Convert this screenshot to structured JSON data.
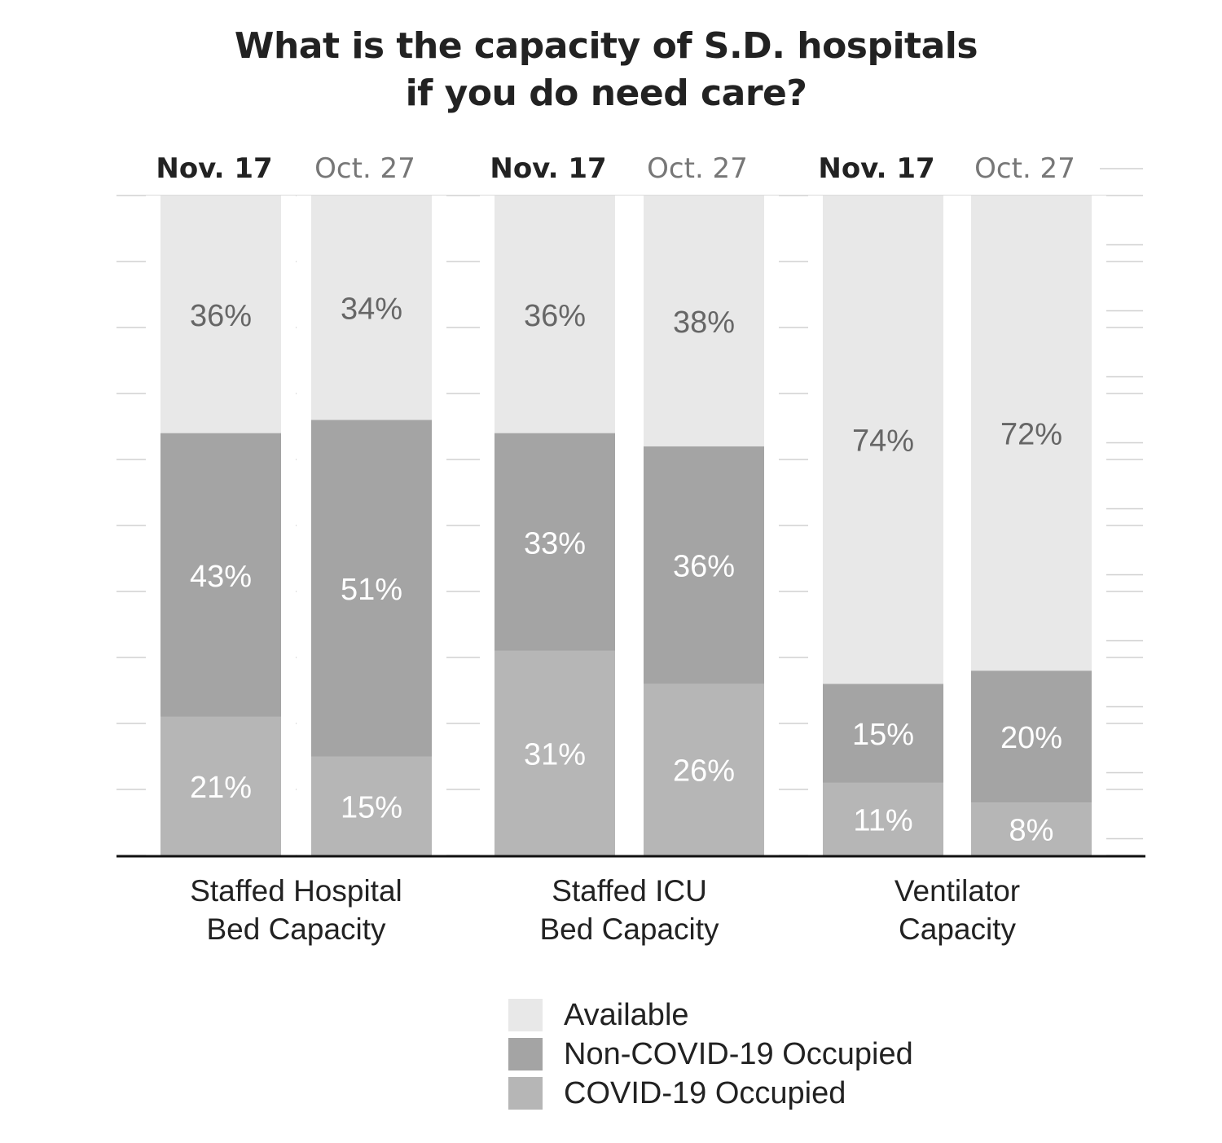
{
  "chart_data": {
    "type": "bar",
    "stacked": true,
    "title": "What is the capacity of S.D. hospitals if you do need care?",
    "title_lines": [
      "What is the capacity of S.D. hospitals",
      "if you do need care?"
    ],
    "unit": "%",
    "ylim": [
      0,
      100
    ],
    "grid": true,
    "legend_position": "bottom",
    "groups": [
      {
        "label_lines": [
          "Staffed Hospital",
          "Bed Capacity"
        ],
        "bars": [
          {
            "date": "Nov. 17",
            "bold": true,
            "covid": 21,
            "non_covid": 43,
            "available": 36
          },
          {
            "date": "Oct. 27",
            "bold": false,
            "covid": 15,
            "non_covid": 51,
            "available": 34
          }
        ]
      },
      {
        "label_lines": [
          "Staffed ICU",
          "Bed Capacity"
        ],
        "bars": [
          {
            "date": "Nov. 17",
            "bold": true,
            "covid": 31,
            "non_covid": 33,
            "available": 36
          },
          {
            "date": "Oct. 27",
            "bold": false,
            "covid": 26,
            "non_covid": 36,
            "available": 38
          }
        ]
      },
      {
        "label_lines": [
          "Ventilator",
          "Capacity"
        ],
        "bars": [
          {
            "date": "Nov. 17",
            "bold": true,
            "covid": 11,
            "non_covid": 15,
            "available": 74
          },
          {
            "date": "Oct. 27",
            "bold": false,
            "covid": 8,
            "non_covid": 20,
            "available": 72
          }
        ]
      }
    ],
    "series": [
      {
        "key": "available",
        "name": "Available",
        "color": "#e8e8e8",
        "label_color": "#666666"
      },
      {
        "key": "non_covid",
        "name": "Non-COVID-19 Occupied",
        "color": "#a4a4a4",
        "label_color": "#ffffff"
      },
      {
        "key": "covid",
        "name": "COVID-19 Occupied",
        "color": "#b6b6b6",
        "label_color": "#ffffff"
      }
    ]
  }
}
